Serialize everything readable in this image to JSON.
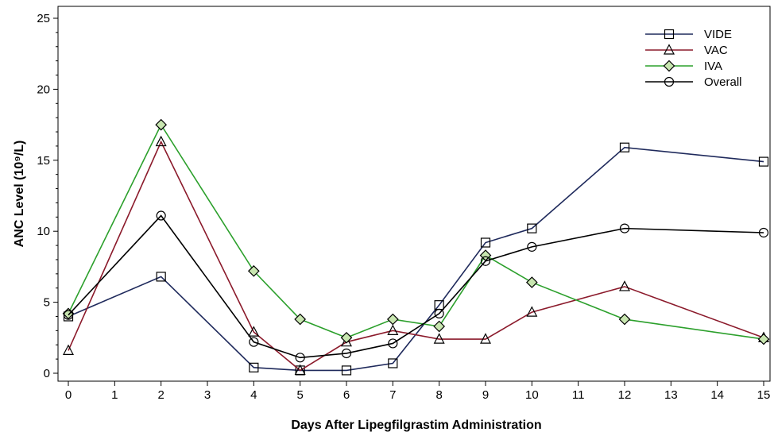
{
  "chart_data": {
    "type": "line",
    "xlabel": "Days After Lipegfilgrastim Administration",
    "ylabel": "ANC Level (10⁹/L)",
    "xlim": [
      0,
      15
    ],
    "ylim": [
      0,
      25
    ],
    "x_ticks": [
      0,
      1,
      2,
      3,
      4,
      5,
      6,
      7,
      8,
      9,
      10,
      11,
      12,
      13,
      14,
      15
    ],
    "y_ticks": [
      0,
      5,
      10,
      15,
      20,
      25
    ],
    "grid": false,
    "legend_position": "top-right",
    "series": [
      {
        "name": "VIDE",
        "color": "#1f2a5c",
        "marker": "square",
        "x": [
          0,
          2,
          4,
          5,
          6,
          7,
          8,
          9,
          10,
          12,
          15
        ],
        "y": [
          4.0,
          6.8,
          0.4,
          0.2,
          0.2,
          0.7,
          4.8,
          9.2,
          10.2,
          15.9,
          14.9
        ]
      },
      {
        "name": "VAC",
        "color": "#8b1a2b",
        "marker": "triangle",
        "x": [
          0,
          2,
          4,
          5,
          6,
          7,
          8,
          9,
          10,
          12,
          15
        ],
        "y": [
          1.6,
          16.3,
          2.9,
          0.2,
          2.2,
          3.0,
          2.4,
          2.4,
          4.3,
          6.1,
          2.5
        ]
      },
      {
        "name": "IVA",
        "color": "#2ca02c",
        "marker": "diamond",
        "x": [
          0,
          2,
          4,
          5,
          6,
          7,
          8,
          9,
          10,
          12,
          15
        ],
        "y": [
          4.2,
          17.5,
          7.2,
          3.8,
          2.5,
          3.8,
          3.3,
          8.3,
          6.4,
          3.8,
          2.4
        ]
      },
      {
        "name": "Overall",
        "color": "#000000",
        "marker": "circle",
        "x": [
          0,
          2,
          4,
          5,
          6,
          7,
          8,
          9,
          10,
          12,
          15
        ],
        "y": [
          4.1,
          11.1,
          2.2,
          1.1,
          1.4,
          2.1,
          4.2,
          7.9,
          8.9,
          10.2,
          9.9
        ]
      }
    ]
  }
}
